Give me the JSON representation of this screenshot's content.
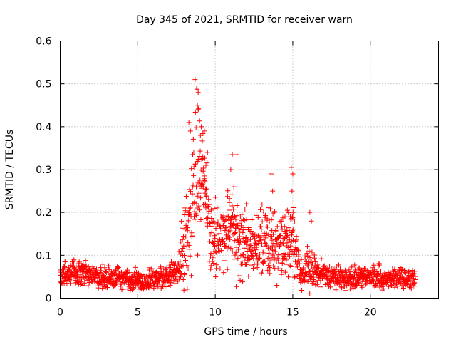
{
  "chart_data": {
    "type": "scatter",
    "title": "Day 345 of 2021, SRMTID for receiver warn",
    "xlabel": "GPS time / hours",
    "ylabel": "SRMTID / TECUs",
    "xlim": [
      0,
      24.4
    ],
    "ylim": [
      0,
      0.6
    ],
    "xticks": [
      0,
      5,
      10,
      15,
      20
    ],
    "xtick_labels": [
      "0",
      "5",
      "10",
      "15",
      "20"
    ],
    "yticks": [
      0,
      0.1,
      0.2,
      0.3,
      0.4,
      0.5,
      0.6
    ],
    "ytick_labels": [
      "0",
      "0.1",
      "0.2",
      "0.3",
      "0.4",
      "0.5",
      "0.6"
    ],
    "grid": true,
    "marker": "+",
    "series": [
      {
        "name": "SRMTID",
        "color": "#ff0000",
        "x_range": [
          0,
          22.9
        ],
        "envelope": [
          {
            "x": 0.0,
            "base": 0.05,
            "spread": 0.02
          },
          {
            "x": 1.0,
            "base": 0.06,
            "spread": 0.03
          },
          {
            "x": 2.0,
            "base": 0.05,
            "spread": 0.025
          },
          {
            "x": 3.0,
            "base": 0.045,
            "spread": 0.025
          },
          {
            "x": 5.0,
            "base": 0.04,
            "spread": 0.025
          },
          {
            "x": 7.0,
            "base": 0.05,
            "spread": 0.025
          },
          {
            "x": 7.6,
            "base": 0.07,
            "spread": 0.04
          },
          {
            "x": 8.0,
            "base": 0.12,
            "spread": 0.1
          },
          {
            "x": 8.5,
            "base": 0.2,
            "spread": 0.12
          },
          {
            "x": 8.8,
            "base": 0.3,
            "spread": 0.18
          },
          {
            "x": 9.2,
            "base": 0.28,
            "spread": 0.12
          },
          {
            "x": 9.7,
            "base": 0.15,
            "spread": 0.08
          },
          {
            "x": 10.5,
            "base": 0.15,
            "spread": 0.08
          },
          {
            "x": 11.0,
            "base": 0.18,
            "spread": 0.1
          },
          {
            "x": 11.5,
            "base": 0.13,
            "spread": 0.08
          },
          {
            "x": 12.5,
            "base": 0.11,
            "spread": 0.06
          },
          {
            "x": 13.5,
            "base": 0.13,
            "spread": 0.09
          },
          {
            "x": 14.5,
            "base": 0.12,
            "spread": 0.07
          },
          {
            "x": 15.0,
            "base": 0.14,
            "spread": 0.1
          },
          {
            "x": 15.5,
            "base": 0.05,
            "spread": 0.03
          },
          {
            "x": 16.0,
            "base": 0.07,
            "spread": 0.05
          },
          {
            "x": 16.5,
            "base": 0.06,
            "spread": 0.03
          },
          {
            "x": 18.0,
            "base": 0.045,
            "spread": 0.025
          },
          {
            "x": 20.0,
            "base": 0.05,
            "spread": 0.025
          },
          {
            "x": 22.9,
            "base": 0.045,
            "spread": 0.025
          }
        ],
        "highlights": [
          {
            "x": 8.7,
            "y": 0.51
          },
          {
            "x": 8.8,
            "y": 0.49
          },
          {
            "x": 8.9,
            "y": 0.48
          },
          {
            "x": 8.85,
            "y": 0.45
          },
          {
            "x": 8.9,
            "y": 0.44
          },
          {
            "x": 8.3,
            "y": 0.41
          },
          {
            "x": 8.4,
            "y": 0.39
          },
          {
            "x": 9.1,
            "y": 0.4
          },
          {
            "x": 9.3,
            "y": 0.39
          },
          {
            "x": 9.5,
            "y": 0.34
          },
          {
            "x": 9.2,
            "y": 0.33
          },
          {
            "x": 9.4,
            "y": 0.31
          },
          {
            "x": 11.1,
            "y": 0.335
          },
          {
            "x": 11.4,
            "y": 0.335
          },
          {
            "x": 11.0,
            "y": 0.3
          },
          {
            "x": 11.2,
            "y": 0.26
          },
          {
            "x": 13.6,
            "y": 0.29
          },
          {
            "x": 13.7,
            "y": 0.25
          },
          {
            "x": 14.9,
            "y": 0.305
          },
          {
            "x": 15.0,
            "y": 0.29
          },
          {
            "x": 14.95,
            "y": 0.25
          },
          {
            "x": 16.1,
            "y": 0.2
          },
          {
            "x": 16.2,
            "y": 0.18
          },
          {
            "x": 13.8,
            "y": 0.2
          },
          {
            "x": 14.5,
            "y": 0.19
          },
          {
            "x": 12.0,
            "y": 0.22
          }
        ]
      }
    ]
  }
}
